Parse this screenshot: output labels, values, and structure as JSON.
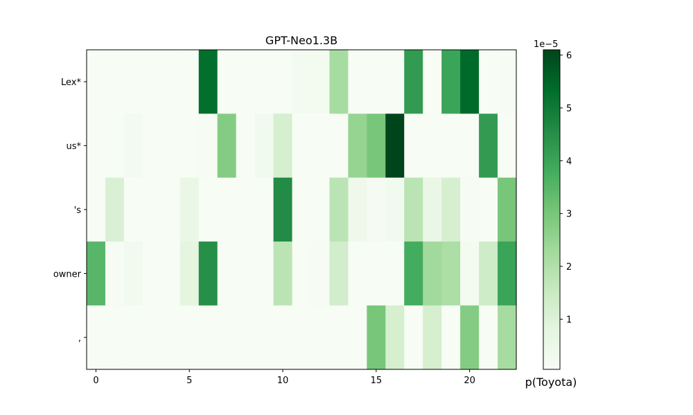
{
  "chart_data": {
    "type": "heatmap",
    "title": "GPT-Neo1.3B",
    "colormap": "Greens",
    "x_ticks": [
      "0",
      "5",
      "10",
      "15",
      "20"
    ],
    "x_tick_values": [
      0,
      5,
      10,
      15,
      20
    ],
    "rows": [
      "Lex*",
      "us*",
      "'s",
      "owner",
      ","
    ],
    "n_cols": 23,
    "values": [
      [
        0.05,
        0.05,
        0.05,
        0.05,
        0.05,
        0.05,
        5.3,
        0.05,
        0.05,
        0.05,
        0.05,
        0.2,
        0.2,
        2.2,
        0.05,
        0.05,
        0.05,
        4.2,
        0.05,
        4.0,
        5.4,
        0.05,
        0.1
      ],
      [
        0.05,
        0.05,
        0.2,
        0.05,
        0.05,
        0.05,
        0.1,
        2.8,
        0.05,
        0.3,
        1.2,
        0.05,
        0.05,
        0.05,
        2.5,
        3.0,
        6.1,
        0.05,
        0.05,
        0.05,
        0.05,
        4.2,
        0.05
      ],
      [
        0.05,
        1.1,
        0.05,
        0.05,
        0.05,
        0.6,
        0.05,
        0.05,
        0.05,
        0.05,
        4.6,
        0.05,
        0.05,
        1.8,
        0.4,
        0.15,
        0.3,
        1.8,
        0.6,
        1.2,
        0.1,
        0.05,
        3.0
      ],
      [
        3.5,
        0.1,
        0.3,
        0.05,
        0.05,
        0.8,
        4.5,
        0.05,
        0.05,
        0.05,
        1.8,
        0.05,
        0.1,
        1.3,
        0.05,
        0.05,
        0.05,
        3.8,
        2.3,
        2.1,
        0.2,
        1.4,
        4.0
      ],
      [
        0.05,
        0.05,
        0.05,
        0.05,
        0.05,
        0.05,
        0.05,
        0.05,
        0.05,
        0.05,
        0.05,
        0.05,
        0.05,
        0.05,
        0.05,
        3.0,
        1.2,
        0.05,
        1.2,
        0.05,
        2.8,
        0.05,
        2.2
      ]
    ],
    "colorbar": {
      "label": "p(Toyota)",
      "scale_text": "1e−5",
      "ticks": [
        "1",
        "2",
        "3",
        "4",
        "5",
        "6"
      ],
      "tick_values": [
        1,
        2,
        3,
        4,
        5,
        6
      ],
      "vmin": 0.05,
      "vmax": 6.1
    }
  }
}
